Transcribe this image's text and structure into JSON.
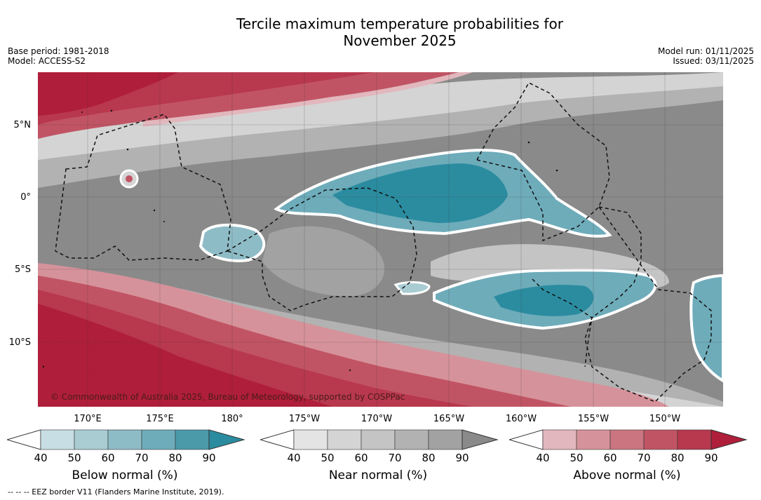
{
  "title_line1": "Tercile maximum temperature probabilities for",
  "title_line2": "November 2025",
  "base_period": "Base period: 1981-2018",
  "model": "Model: ACCESS-S2",
  "model_run": "Model run: 01/11/2025",
  "issued": "Issued: 03/11/2025",
  "lat_ticks": [
    "5°N",
    "0°",
    "5°S",
    "10°S"
  ],
  "lon_ticks": [
    "170°E",
    "175°E",
    "180°",
    "175°W",
    "170°W",
    "165°W",
    "160°W",
    "155°W",
    "150°W"
  ],
  "copyright": "© Commonwealth of Australia 2025, Bureau of Meteorology, supported by COSPPac",
  "colorbars": [
    {
      "title": "Below normal (%)",
      "labels": [
        "40",
        "50",
        "60",
        "70",
        "80",
        "90"
      ],
      "colors": [
        "#c7dfe4",
        "#a9ccd3",
        "#8ebcc6",
        "#6eacba",
        "#4a9aaa",
        "#2b8ca0"
      ]
    },
    {
      "title": "Near normal (%)",
      "labels": [
        "40",
        "50",
        "60",
        "70",
        "80",
        "90"
      ],
      "colors": [
        "#e4e4e4",
        "#d4d4d4",
        "#c4c4c4",
        "#b2b2b2",
        "#a2a2a2",
        "#8a8a8a"
      ]
    },
    {
      "title": "Above normal (%)",
      "labels": [
        "40",
        "50",
        "60",
        "70",
        "80",
        "90"
      ],
      "colors": [
        "#e2b7bd",
        "#d6929a",
        "#cb7580",
        "#c15464",
        "#b8384e",
        "#af1e3a"
      ]
    }
  ],
  "footnote": "-- -- -- EEZ border V11 (Flanders Marine Institute, 2019)."
}
